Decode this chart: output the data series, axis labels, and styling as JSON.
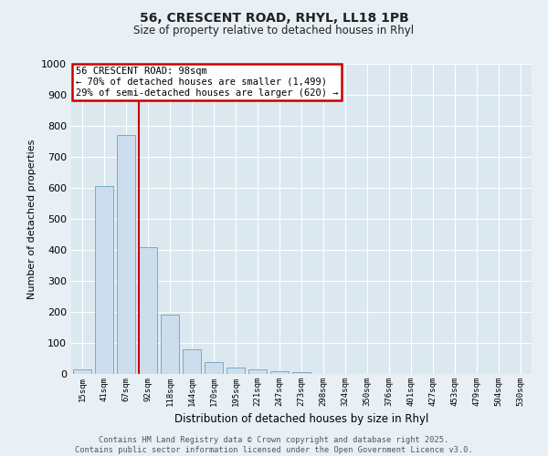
{
  "title1": "56, CRESCENT ROAD, RHYL, LL18 1PB",
  "title2": "Size of property relative to detached houses in Rhyl",
  "xlabel": "Distribution of detached houses by size in Rhyl",
  "ylabel": "Number of detached properties",
  "categories": [
    "15sqm",
    "41sqm",
    "67sqm",
    "92sqm",
    "118sqm",
    "144sqm",
    "170sqm",
    "195sqm",
    "221sqm",
    "247sqm",
    "273sqm",
    "298sqm",
    "324sqm",
    "350sqm",
    "376sqm",
    "401sqm",
    "427sqm",
    "453sqm",
    "479sqm",
    "504sqm",
    "530sqm"
  ],
  "values": [
    15,
    605,
    770,
    410,
    190,
    78,
    37,
    20,
    15,
    10,
    5,
    0,
    0,
    0,
    0,
    0,
    0,
    0,
    0,
    0,
    0
  ],
  "bar_color": "#ccdded",
  "bar_edge_color": "#7aaac8",
  "red_line_index": 3,
  "annotation_title": "56 CRESCENT ROAD: 98sqm",
  "annotation_line1": "← 70% of detached houses are smaller (1,499)",
  "annotation_line2": "29% of semi-detached houses are larger (620) →",
  "annotation_box_color": "#ffffff",
  "annotation_box_edge": "#cc0000",
  "ylim": [
    0,
    1000
  ],
  "yticks": [
    0,
    100,
    200,
    300,
    400,
    500,
    600,
    700,
    800,
    900,
    1000
  ],
  "background_color": "#dce8f0",
  "grid_color": "#ffffff",
  "fig_background": "#e8f0f5",
  "footer1": "Contains HM Land Registry data © Crown copyright and database right 2025.",
  "footer2": "Contains public sector information licensed under the Open Government Licence v3.0."
}
